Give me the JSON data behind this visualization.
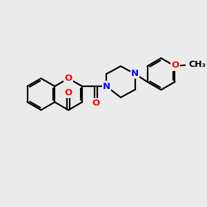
{
  "bg_color": "#ebebeb",
  "bond_color": "#000000",
  "bond_width": 1.6,
  "atom_colors": {
    "O": "#ff0000",
    "N": "#0000ff"
  },
  "font_size": 9.5,
  "fig_size": [
    3.0,
    3.0
  ],
  "dpi": 100
}
